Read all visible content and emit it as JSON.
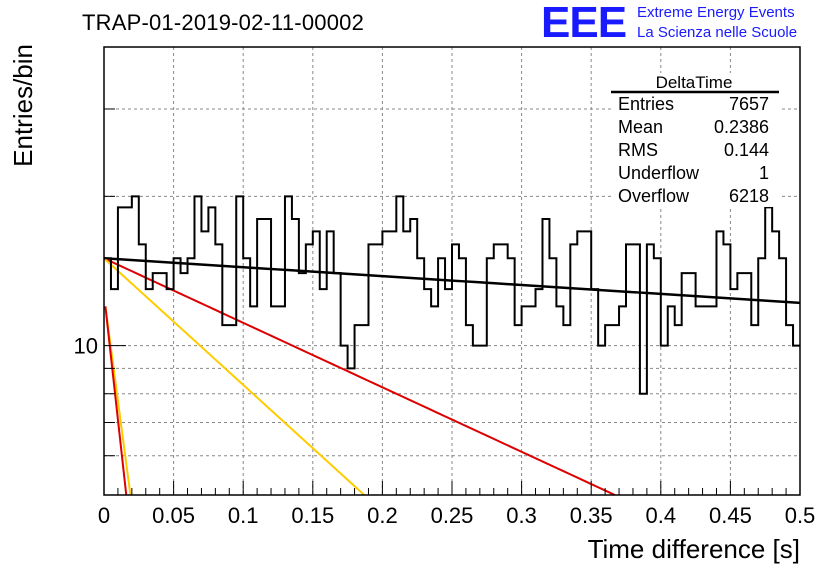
{
  "header": {
    "title": "TRAP-01-2019-02-11-00002",
    "logo_text": "EEE",
    "logo_line_1": "Extreme Energy Events",
    "logo_line_2": "La Scienza nelle Scuole"
  },
  "stats_box": {
    "title": "DeltaTime",
    "rows": [
      {
        "label": "Entries",
        "value": "7657"
      },
      {
        "label": "Mean",
        "value": "0.2386"
      },
      {
        "label": "RMS",
        "value": "0.144"
      },
      {
        "label": "Underflow",
        "value": "1"
      },
      {
        "label": "Overflow",
        "value": "6218"
      }
    ]
  },
  "colors": {
    "histogram": "#000000",
    "fit_black": "#000000",
    "fit_red": "#dd0000",
    "fit_yellow": "#ffcc00",
    "grid": "#888888"
  },
  "chart_data": {
    "type": "line",
    "xlabel": "Time difference [s]",
    "ylabel": "Entries/bin",
    "log_y": true,
    "grid": true,
    "xlim": [
      0,
      0.5
    ],
    "ylim": [
      5,
      40
    ],
    "x_ticks": [
      "0",
      "0.05",
      "0.1",
      "0.15",
      "0.2",
      "0.25",
      "0.3",
      "0.35",
      "0.4",
      "0.45",
      "0.5"
    ],
    "y_tick_labels": [
      "10"
    ],
    "bin_width": 0.005,
    "histogram": {
      "name": "DeltaTime",
      "values": [
        15,
        13,
        19,
        19,
        20,
        16,
        13,
        14,
        14,
        13,
        15,
        14,
        15,
        20,
        17,
        19,
        16,
        11,
        11,
        20,
        15,
        12,
        18,
        18,
        12,
        12,
        20,
        18,
        14,
        16,
        17,
        13,
        17,
        14,
        10,
        9,
        11,
        11,
        16,
        16,
        17,
        17,
        20,
        17,
        18,
        15,
        13,
        12,
        15,
        13,
        16,
        15,
        11,
        10,
        10,
        15,
        16,
        16,
        15,
        11,
        12,
        12,
        13,
        18,
        15,
        12,
        11,
        16,
        17,
        17,
        13,
        10,
        11,
        11,
        12,
        16,
        16,
        8,
        16,
        15,
        10,
        12,
        11,
        14,
        14,
        12,
        12,
        12,
        17,
        16,
        13,
        14,
        14,
        11,
        15,
        19,
        17,
        15,
        11,
        10
      ]
    },
    "fits": [
      {
        "color": "black",
        "x": [
          0,
          0.5
        ],
        "y": [
          15.0,
          12.2
        ]
      },
      {
        "color": "red",
        "x": [
          0,
          0.367
        ],
        "y": [
          15.0,
          5.0
        ]
      },
      {
        "color": "yellow",
        "x": [
          0,
          0.187
        ],
        "y": [
          15.0,
          5.0
        ]
      },
      {
        "color": "yellow",
        "x": [
          0.001,
          0.019
        ],
        "y": [
          12.0,
          5.0
        ]
      },
      {
        "color": "red",
        "x": [
          0.001,
          0.016
        ],
        "y": [
          12.0,
          5.0
        ]
      }
    ]
  }
}
